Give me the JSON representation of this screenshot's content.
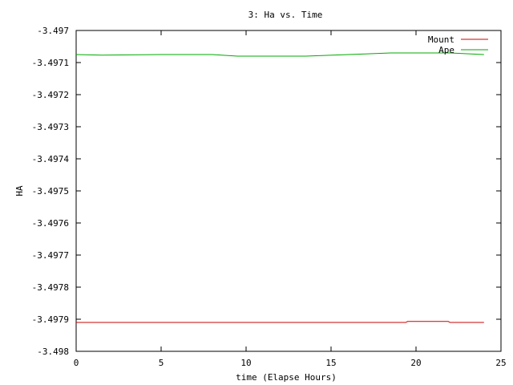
{
  "chart_data": {
    "type": "line",
    "title": "3: Ha vs. Time",
    "xlabel": "time (Elapse Hours)",
    "ylabel": "HA",
    "xlim": [
      0,
      25
    ],
    "ylim": [
      -3.498,
      -3.497
    ],
    "x_ticks": [
      0,
      5,
      10,
      15,
      20,
      25
    ],
    "x_tick_labels": [
      "0",
      "5",
      "10",
      "15",
      "20",
      "25"
    ],
    "y_ticks": [
      -3.498,
      -3.4979,
      -3.4978,
      -3.4977,
      -3.4976,
      -3.4975,
      -3.4974,
      -3.4973,
      -3.4972,
      -3.4971,
      -3.497
    ],
    "y_tick_labels": [
      "-3.498",
      "-3.4979",
      "-3.4978",
      "-3.4977",
      "-3.4976",
      "-3.4975",
      "-3.4974",
      "-3.4973",
      "-3.4972",
      "-3.4971",
      "-3.497"
    ],
    "grid": false,
    "legend": "top-right",
    "series": [
      {
        "name": "Mount",
        "color": "#cc0000",
        "x": [
          0,
          19.4,
          19.5,
          21.9,
          22,
          24
        ],
        "y": [
          -3.49791,
          -3.49791,
          -3.497907,
          -3.497907,
          -3.49791,
          -3.49791
        ]
      },
      {
        "name": "Ape",
        "color": "#00aa00",
        "x": [
          0,
          1.5,
          5,
          8,
          9.5,
          13.5,
          17,
          18.5,
          22,
          24
        ],
        "y": [
          -3.497075,
          -3.497077,
          -3.497075,
          -3.497075,
          -3.49708,
          -3.49708,
          -3.497073,
          -3.49707,
          -3.49707,
          -3.497075
        ]
      }
    ]
  }
}
